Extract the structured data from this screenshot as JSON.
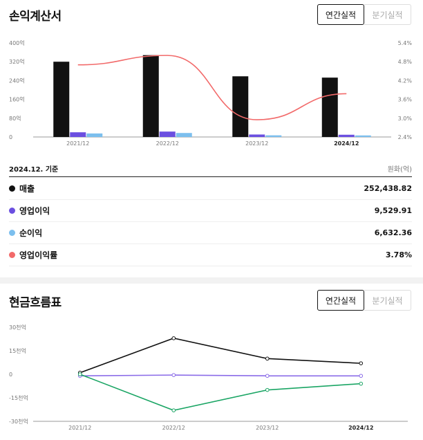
{
  "income": {
    "title": "손익계산서",
    "toggle": {
      "annual": "연간실적",
      "quarterly": "분기실적"
    },
    "basis": "2024.12. 기준",
    "unit": "원화(억)",
    "legend": [
      {
        "label": "매출",
        "value": "252,438.82",
        "color": "#111111"
      },
      {
        "label": "영업이익",
        "value": "9,529.91",
        "color": "#6b4fe0"
      },
      {
        "label": "순이익",
        "value": "6,632.36",
        "color": "#7cbfee"
      },
      {
        "label": "영업이익률",
        "value": "3.78%",
        "color": "#f26a6a"
      }
    ]
  },
  "cashflow": {
    "title": "현금흐름표",
    "toggle": {
      "annual": "연간실적",
      "quarterly": "분기실적"
    }
  },
  "chart_data": [
    {
      "type": "bar",
      "categories": [
        "2021/12",
        "2022/12",
        "2023/12",
        "2024/12"
      ],
      "series": [
        {
          "name": "매출",
          "values": [
            3200,
            3480,
            2580,
            2524
          ],
          "color": "#111111"
        },
        {
          "name": "영업이익",
          "values": [
            200,
            230,
            105,
            95
          ],
          "color": "#6b4fe0"
        },
        {
          "name": "순이익",
          "values": [
            150,
            170,
            70,
            66
          ],
          "color": "#7cbfee"
        },
        {
          "name": "영업이익률",
          "values": [
            4.7,
            5.0,
            2.95,
            3.78
          ],
          "color": "#f26a6a",
          "axis": "right",
          "kind": "line"
        }
      ],
      "yticks": [
        "0",
        "80억",
        "160억",
        "240억",
        "320억",
        "400억"
      ],
      "ylim": [
        0,
        4000
      ],
      "y2ticks": [
        "2.4%",
        "3.0%",
        "3.6%",
        "4.2%",
        "4.8%",
        "5.4%"
      ],
      "y2lim": [
        2.4,
        5.4
      ]
    },
    {
      "type": "line",
      "categories": [
        "2021/12",
        "2022/12",
        "2023/12",
        "2024/12"
      ],
      "series": [
        {
          "values": [
            1,
            23,
            10,
            7
          ],
          "color": "#111111"
        },
        {
          "values": [
            -1,
            -0.5,
            -1,
            -1
          ],
          "color": "#8a6be8"
        },
        {
          "values": [
            0,
            -23,
            -10,
            -6
          ],
          "color": "#1aa564"
        }
      ],
      "yticks": [
        "30천억",
        "15천억",
        "0",
        "-15천억",
        "-30천억"
      ],
      "ylim": [
        -30,
        30
      ]
    }
  ]
}
